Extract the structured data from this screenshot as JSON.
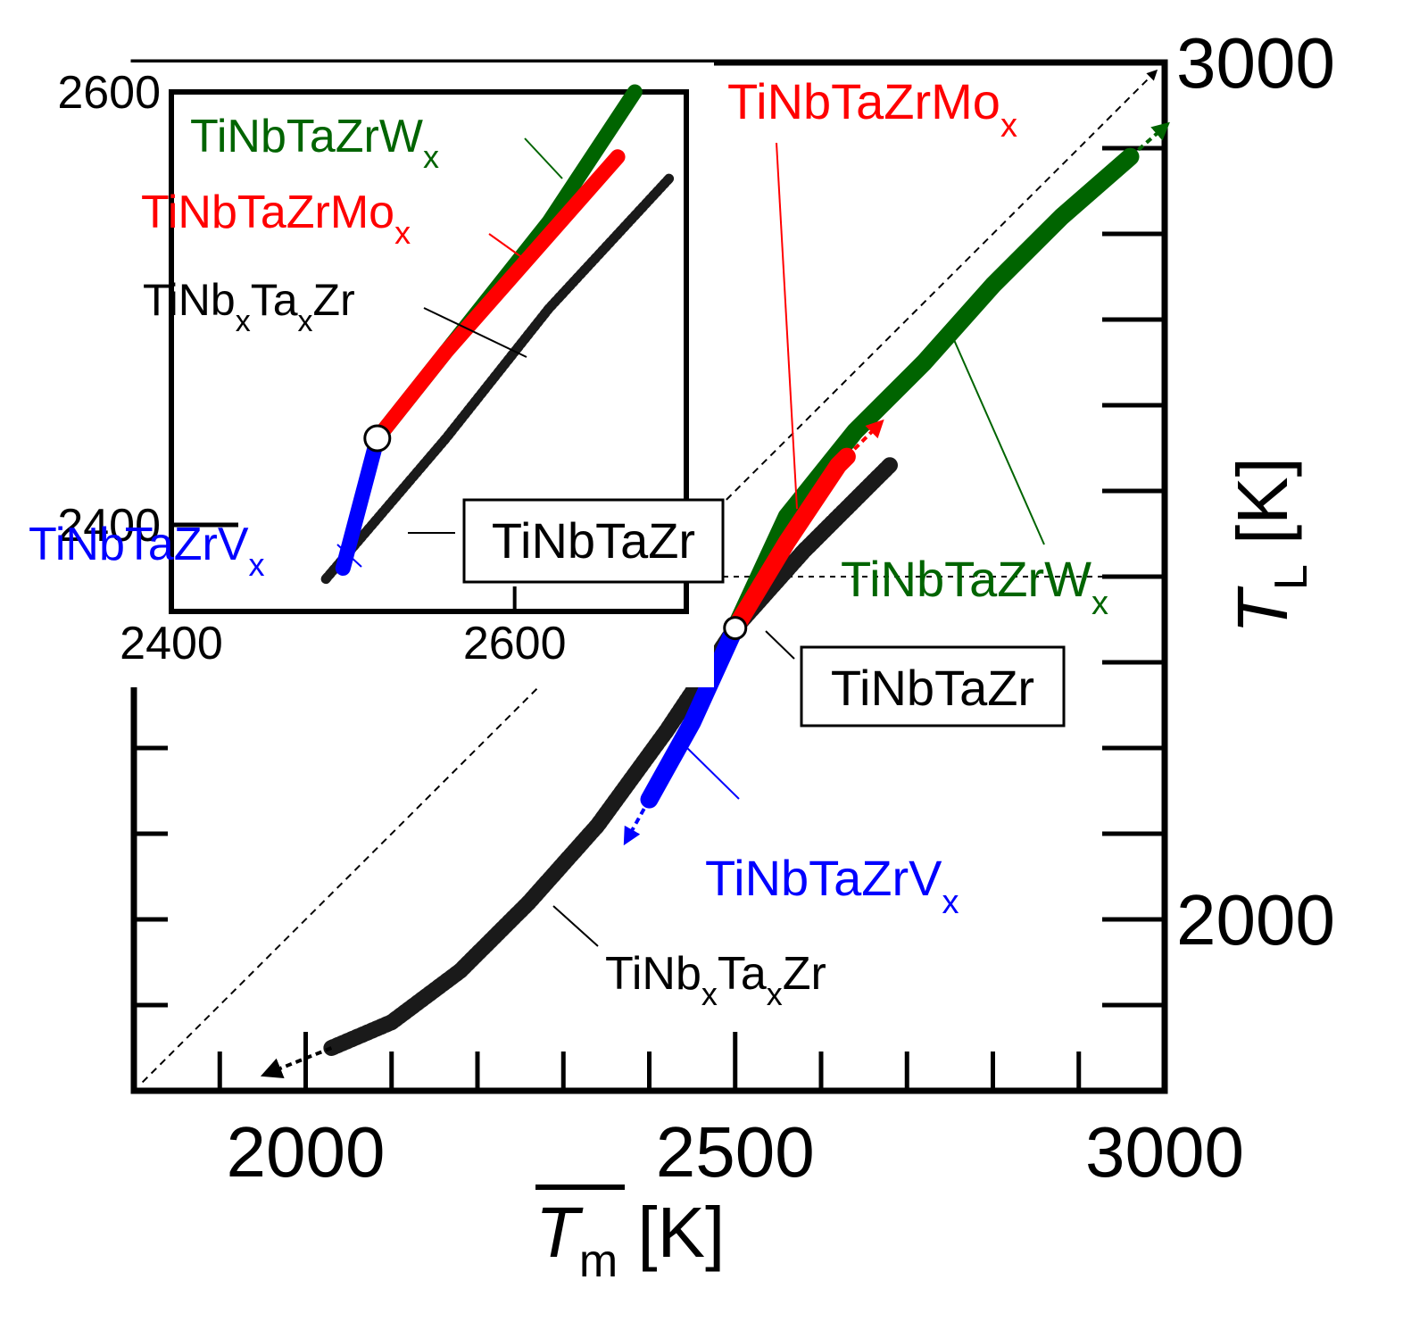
{
  "chart_data": [
    {
      "id": "main",
      "type": "line",
      "xlabel_symbol": "T",
      "xlabel_sub": "m",
      "xlabel_unit": " [K]",
      "ylabel_symbol": "T",
      "ylabel_sub": "L",
      "ylabel_unit": " [K]",
      "xlim": [
        1800,
        3000
      ],
      "ylim": [
        1800,
        3000
      ],
      "x_ticks": [
        2000,
        2500,
        3000
      ],
      "y_ticks": [
        2000,
        3000
      ],
      "minor_step": 100,
      "reference_levels": {
        "dotted_y": 2400
      },
      "series": [
        {
          "name": "TiNbTaZrW",
          "sub": "x",
          "color": "#006400",
          "x": [
            2500,
            2560,
            2640,
            2720,
            2800,
            2880,
            2960
          ],
          "y": [
            2340,
            2470,
            2570,
            2650,
            2740,
            2820,
            2890
          ]
        },
        {
          "name": "TiNbTaZrMo",
          "sub": "x",
          "color": "#ff0000",
          "x": [
            2500,
            2560,
            2620,
            2630
          ],
          "y": [
            2340,
            2440,
            2530,
            2540
          ]
        },
        {
          "name": "TiNb",
          "sub": "x",
          "mid": "Ta",
          "sub2": "x",
          "tail": "Zr",
          "color": "#1a1a1a",
          "x": [
            2030,
            2100,
            2180,
            2260,
            2340,
            2420,
            2500,
            2580,
            2680
          ],
          "y": [
            1850,
            1880,
            1940,
            2020,
            2110,
            2220,
            2340,
            2430,
            2530
          ]
        },
        {
          "name": "TiNbTaZrV",
          "sub": "x",
          "color": "#0000ff",
          "x": [
            2500,
            2450,
            2400
          ],
          "y": [
            2340,
            2230,
            2140
          ]
        }
      ],
      "reference_point": {
        "label": "TiNbTaZr",
        "x": 2500,
        "y": 2340
      },
      "guide_line": "y = x"
    },
    {
      "id": "inset",
      "type": "line",
      "xlim": [
        2400,
        2700
      ],
      "ylim": [
        2360,
        2600
      ],
      "x_ticks": [
        2400,
        2600
      ],
      "y_ticks": [
        2400,
        2600
      ],
      "series": [
        {
          "name": "TiNbTaZrW",
          "sub": "x",
          "color": "#006400",
          "x": [
            2520,
            2570,
            2620,
            2670
          ],
          "y": [
            2440,
            2490,
            2540,
            2600
          ]
        },
        {
          "name": "TiNbTaZrMo",
          "sub": "x",
          "color": "#ff0000",
          "x": [
            2520,
            2560,
            2610,
            2660
          ],
          "y": [
            2440,
            2480,
            2525,
            2570
          ]
        },
        {
          "name": "TiNb",
          "sub": "x",
          "mid": "Ta",
          "sub2": "x",
          "tail": "Zr",
          "color": "#1a1a1a",
          "x": [
            2490,
            2560,
            2620,
            2690
          ],
          "y": [
            2375,
            2440,
            2500,
            2560
          ]
        },
        {
          "name": "TiNbTaZrV",
          "sub": "x",
          "color": "#0000ff",
          "x": [
            2520,
            2500
          ],
          "y": [
            2440,
            2380
          ]
        }
      ],
      "reference_point": {
        "label": "TiNbTaZr",
        "x": 2520,
        "y": 2440
      }
    }
  ]
}
